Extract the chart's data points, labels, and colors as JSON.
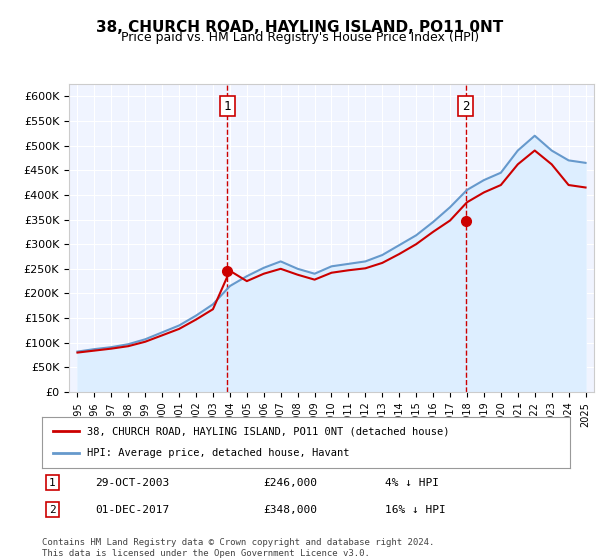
{
  "title": "38, CHURCH ROAD, HAYLING ISLAND, PO11 0NT",
  "subtitle": "Price paid vs. HM Land Registry's House Price Index (HPI)",
  "property_label": "38, CHURCH ROAD, HAYLING ISLAND, PO11 0NT (detached house)",
  "hpi_label": "HPI: Average price, detached house, Havant",
  "annotation1": {
    "label": "1",
    "date": "29-OCT-2003",
    "price": 246000,
    "note": "4% ↓ HPI"
  },
  "annotation2": {
    "label": "2",
    "date": "01-DEC-2017",
    "price": 348000,
    "note": "16% ↓ HPI"
  },
  "footnote1": "Contains HM Land Registry data © Crown copyright and database right 2024.",
  "footnote2": "This data is licensed under the Open Government Licence v3.0.",
  "ylim": [
    0,
    625000
  ],
  "yticks": [
    0,
    50000,
    100000,
    150000,
    200000,
    250000,
    300000,
    350000,
    400000,
    450000,
    500000,
    550000,
    600000
  ],
  "property_color": "#cc0000",
  "hpi_color": "#6699cc",
  "hpi_fill_color": "#ddeeff",
  "vline_color": "#cc0000",
  "vline_style": "--",
  "background_color": "#ffffff",
  "plot_bg_color": "#f0f4ff",
  "grid_color": "#ffffff",
  "hpi_years": [
    1995,
    1996,
    1997,
    1998,
    1999,
    2000,
    2001,
    2002,
    2003,
    2004,
    2005,
    2006,
    2007,
    2008,
    2009,
    2010,
    2011,
    2012,
    2013,
    2014,
    2015,
    2016,
    2017,
    2018,
    2019,
    2020,
    2021,
    2022,
    2023,
    2024,
    2025
  ],
  "hpi_values": [
    82000,
    87000,
    91000,
    97000,
    107000,
    121000,
    135000,
    155000,
    178000,
    215000,
    235000,
    252000,
    265000,
    250000,
    240000,
    255000,
    260000,
    265000,
    278000,
    298000,
    318000,
    345000,
    375000,
    410000,
    430000,
    445000,
    490000,
    520000,
    490000,
    470000,
    465000
  ],
  "prop_years": [
    1995,
    1996,
    1997,
    1998,
    1999,
    2000,
    2001,
    2002,
    2003,
    2004,
    2005,
    2006,
    2007,
    2008,
    2009,
    2010,
    2011,
    2012,
    2013,
    2014,
    2015,
    2016,
    2017,
    2018,
    2019,
    2020,
    2021,
    2022,
    2023,
    2024,
    2025
  ],
  "prop_values": [
    80000,
    84000,
    88000,
    93000,
    102000,
    115000,
    128000,
    147000,
    168000,
    246000,
    225000,
    240000,
    250000,
    238000,
    228000,
    242000,
    247000,
    251000,
    262000,
    280000,
    300000,
    325000,
    348000,
    385000,
    405000,
    420000,
    462000,
    490000,
    462000,
    420000,
    415000
  ],
  "sale1_year": 2003.83,
  "sale1_price": 246000,
  "sale2_year": 2017.92,
  "sale2_price": 348000,
  "xtick_years": [
    1995,
    1996,
    1997,
    1998,
    1999,
    2000,
    2001,
    2002,
    2003,
    2004,
    2005,
    2006,
    2007,
    2008,
    2009,
    2010,
    2011,
    2012,
    2013,
    2014,
    2015,
    2016,
    2017,
    2018,
    2019,
    2020,
    2021,
    2022,
    2023,
    2024,
    2025
  ]
}
